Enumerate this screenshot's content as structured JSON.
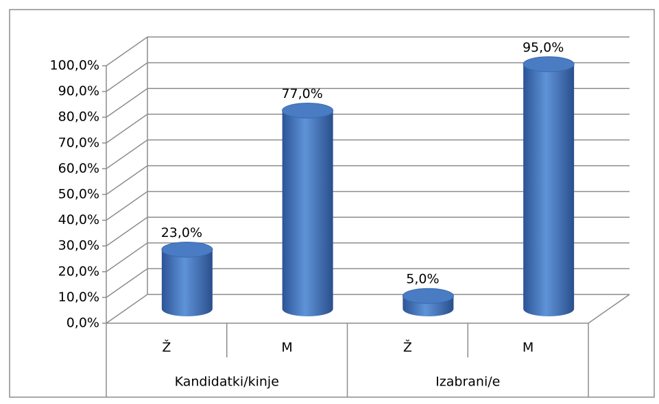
{
  "chart_data": {
    "type": "bar",
    "style": "3d-cylinder",
    "categories": [
      "Ž",
      "M",
      "Ž",
      "M"
    ],
    "category_groups": [
      "Kandidatki/kinje",
      "Izabrani/e"
    ],
    "values": [
      23,
      77,
      5,
      95
    ],
    "value_labels": [
      "23,0%",
      "77,0%",
      "5,0%",
      "95,0%"
    ],
    "color": "#4a7cc4",
    "ylim": [
      0,
      100
    ],
    "yticks": [
      {
        "value": 0,
        "label": "0,0%"
      },
      {
        "value": 10,
        "label": "10,0%"
      },
      {
        "value": 20,
        "label": "20,0%"
      },
      {
        "value": 30,
        "label": "30,0%"
      },
      {
        "value": 40,
        "label": "40,0%"
      },
      {
        "value": 50,
        "label": "50,0%"
      },
      {
        "value": 60,
        "label": "60,0%"
      },
      {
        "value": 70,
        "label": "70,0%"
      },
      {
        "value": 80,
        "label": "80,0%"
      },
      {
        "value": 90,
        "label": "90,0%"
      },
      {
        "value": 100,
        "label": "100,0%"
      }
    ],
    "grid": true
  }
}
